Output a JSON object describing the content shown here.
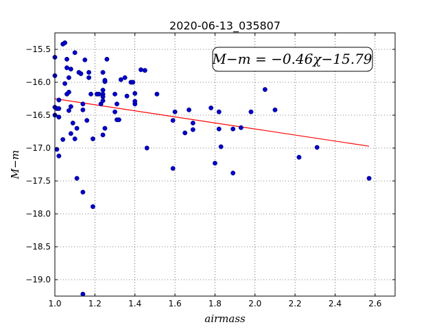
{
  "chart_data": {
    "type": "scatter",
    "title": "2020-06-13_035807",
    "xlabel": "airmass",
    "ylabel": "M−m",
    "xlim": [
      1.0,
      2.7
    ],
    "ylim": [
      -19.25,
      -15.25
    ],
    "y_inverted": true,
    "grid": true,
    "grid_style": "dotted",
    "x_ticks": [
      1.0,
      1.2,
      1.4,
      1.6,
      1.8,
      2.0,
      2.2,
      2.4,
      2.6
    ],
    "x_tick_labels": [
      "1.0",
      "1.2",
      "1.4",
      "1.6",
      "1.8",
      "2.0",
      "2.2",
      "2.4",
      "2.6"
    ],
    "y_ticks": [
      -15.5,
      -16.0,
      -16.5,
      -17.0,
      -17.5,
      -18.0,
      -18.5,
      -19.0
    ],
    "y_tick_labels": [
      "−15.5",
      "−16.0",
      "−16.5",
      "−17.0",
      "−17.5",
      "−18.0",
      "−18.5",
      "−19.0"
    ],
    "annotation": "M−m = −0.46χ−15.79",
    "fit_line": {
      "slope": -0.46,
      "intercept": -15.79,
      "x_range": [
        1.0,
        2.57
      ],
      "color": "#ff0000"
    },
    "marker_color": "#0000cc",
    "series": [
      {
        "points": [
          [
            1.0,
            -15.62
          ],
          [
            1.0,
            -15.9
          ],
          [
            1.0,
            -16.38
          ],
          [
            1.0,
            -16.5
          ],
          [
            1.01,
            -16.4
          ],
          [
            1.02,
            -16.53
          ],
          [
            1.02,
            -16.4
          ],
          [
            1.02,
            -16.27
          ],
          [
            1.01,
            -17.02
          ],
          [
            1.02,
            -17.12
          ],
          [
            1.04,
            -15.42
          ],
          [
            1.05,
            -15.4
          ],
          [
            1.05,
            -16.02
          ],
          [
            1.04,
            -16.87
          ],
          [
            1.06,
            -15.65
          ],
          [
            1.06,
            -15.78
          ],
          [
            1.07,
            -15.93
          ],
          [
            1.06,
            -16.18
          ],
          [
            1.07,
            -16.15
          ],
          [
            1.07,
            -16.43
          ],
          [
            1.08,
            -16.37
          ],
          [
            1.08,
            -15.8
          ],
          [
            1.08,
            -16.78
          ],
          [
            1.09,
            -16.62
          ],
          [
            1.1,
            -15.55
          ],
          [
            1.1,
            -16.86
          ],
          [
            1.11,
            -16.7
          ],
          [
            1.11,
            -17.46
          ],
          [
            1.12,
            -15.85
          ],
          [
            1.13,
            -15.87
          ],
          [
            1.14,
            -16.33
          ],
          [
            1.14,
            -16.42
          ],
          [
            1.14,
            -17.67
          ],
          [
            1.14,
            -19.22
          ],
          [
            1.15,
            -15.66
          ],
          [
            1.16,
            -16.58
          ],
          [
            1.17,
            -15.85
          ],
          [
            1.17,
            -15.93
          ],
          [
            1.18,
            -16.18
          ],
          [
            1.19,
            -16.86
          ],
          [
            1.19,
            -17.89
          ],
          [
            1.21,
            -16.18
          ],
          [
            1.22,
            -16.18
          ],
          [
            1.23,
            -16.33
          ],
          [
            1.24,
            -16.18
          ],
          [
            1.24,
            -16.12
          ],
          [
            1.24,
            -15.85
          ],
          [
            1.24,
            -16.22
          ],
          [
            1.24,
            -16.28
          ],
          [
            1.24,
            -16.8
          ],
          [
            1.25,
            -15.99
          ],
          [
            1.25,
            -15.97
          ],
          [
            1.25,
            -16.7
          ],
          [
            1.26,
            -15.65
          ],
          [
            1.3,
            -16.18
          ],
          [
            1.3,
            -16.45
          ],
          [
            1.31,
            -16.33
          ],
          [
            1.31,
            -16.57
          ],
          [
            1.32,
            -16.57
          ],
          [
            1.33,
            -15.96
          ],
          [
            1.35,
            -15.93
          ],
          [
            1.36,
            -16.21
          ],
          [
            1.38,
            -16.0
          ],
          [
            1.39,
            -16.0
          ],
          [
            1.4,
            -16.33
          ],
          [
            1.4,
            -16.17
          ],
          [
            1.4,
            -16.29
          ],
          [
            1.43,
            -15.81
          ],
          [
            1.45,
            -15.82
          ],
          [
            1.46,
            -17.0
          ],
          [
            1.51,
            -16.18
          ],
          [
            1.59,
            -16.58
          ],
          [
            1.59,
            -17.31
          ],
          [
            1.6,
            -16.45
          ],
          [
            1.65,
            -16.77
          ],
          [
            1.67,
            -16.42
          ],
          [
            1.69,
            -16.62
          ],
          [
            1.69,
            -16.72
          ],
          [
            1.78,
            -16.39
          ],
          [
            1.8,
            -17.23
          ],
          [
            1.82,
            -16.45
          ],
          [
            1.82,
            -16.71
          ],
          [
            1.83,
            -16.98
          ],
          [
            1.89,
            -16.71
          ],
          [
            1.89,
            -17.38
          ],
          [
            1.93,
            -16.69
          ],
          [
            1.98,
            -16.45
          ],
          [
            2.05,
            -16.11
          ],
          [
            2.1,
            -16.42
          ],
          [
            2.22,
            -17.14
          ],
          [
            2.31,
            -16.99
          ],
          [
            2.57,
            -17.46
          ]
        ]
      }
    ]
  }
}
